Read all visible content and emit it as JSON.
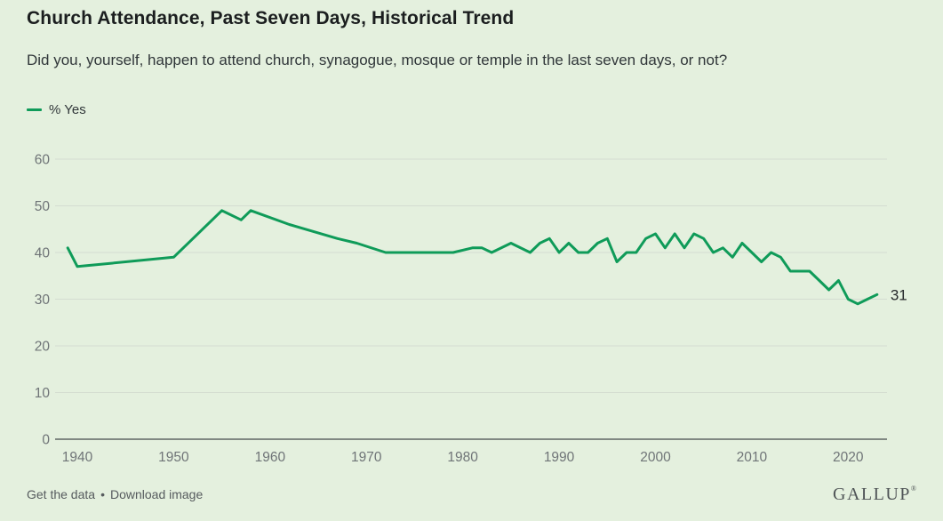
{
  "header": {
    "title": "Church Attendance, Past Seven Days, Historical Trend",
    "subtitle": "Did you, yourself, happen to attend church, synagogue, mosque or temple in the last seven days, or not?"
  },
  "footer": {
    "link_get_data": "Get the data",
    "separator": "•",
    "link_download": "Download image",
    "brand": "GALLUP",
    "brand_mark": "®"
  },
  "colors": {
    "background": "#e4f0de",
    "line": "#0f9b59",
    "grid": "#d4ddd1",
    "baseline": "#454a4c",
    "axis_text": "#6f7477",
    "title_text": "#1b1e1f",
    "body_text": "#303639",
    "end_label_text": "#26292b",
    "footer_text": "#565b5e",
    "logo_text": "#4f5456"
  },
  "chart_data": {
    "type": "line",
    "title": "Church Attendance, Past Seven Days, Historical Trend",
    "question": "Did you, yourself, happen to attend church, synagogue, mosque or temple in the last seven days, or not?",
    "unit": "% Yes",
    "grid": "horizontal",
    "legend_position": "top-left",
    "xlabel": "",
    "ylabel": "",
    "x_ticks": [
      1940,
      1950,
      1960,
      1970,
      1980,
      1990,
      2000,
      2010,
      2020
    ],
    "y_ticks": [
      0,
      10,
      20,
      30,
      40,
      50,
      60
    ],
    "xlim": [
      1938,
      2024
    ],
    "ylim": [
      0,
      63
    ],
    "end_label": "31",
    "series": [
      {
        "name": "% Yes",
        "color": "#0f9b59",
        "points": [
          [
            1939,
            41
          ],
          [
            1940,
            37
          ],
          [
            1950,
            39
          ],
          [
            1954,
            47
          ],
          [
            1955,
            49
          ],
          [
            1957,
            47
          ],
          [
            1958,
            49
          ],
          [
            1962,
            46
          ],
          [
            1967,
            43
          ],
          [
            1969,
            42
          ],
          [
            1972,
            40
          ],
          [
            1979,
            40
          ],
          [
            1981,
            41
          ],
          [
            1982,
            41
          ],
          [
            1983,
            40
          ],
          [
            1985,
            42
          ],
          [
            1987,
            40
          ],
          [
            1988,
            42
          ],
          [
            1989,
            43
          ],
          [
            1990,
            40
          ],
          [
            1991,
            42
          ],
          [
            1992,
            40
          ],
          [
            1993,
            40
          ],
          [
            1994,
            42
          ],
          [
            1995,
            43
          ],
          [
            1996,
            38
          ],
          [
            1997,
            40
          ],
          [
            1998,
            40
          ],
          [
            1999,
            43
          ],
          [
            2000,
            44
          ],
          [
            2001,
            41
          ],
          [
            2002,
            44
          ],
          [
            2003,
            41
          ],
          [
            2004,
            44
          ],
          [
            2005,
            43
          ],
          [
            2006,
            40
          ],
          [
            2007,
            41
          ],
          [
            2008,
            39
          ],
          [
            2009,
            42
          ],
          [
            2010,
            40
          ],
          [
            2011,
            38
          ],
          [
            2012,
            40
          ],
          [
            2013,
            39
          ],
          [
            2014,
            36
          ],
          [
            2015,
            36
          ],
          [
            2016,
            36
          ],
          [
            2017,
            34
          ],
          [
            2018,
            32
          ],
          [
            2019,
            34
          ],
          [
            2020,
            30
          ],
          [
            2021,
            29
          ],
          [
            2022,
            30
          ],
          [
            2023,
            31
          ]
        ]
      }
    ]
  }
}
